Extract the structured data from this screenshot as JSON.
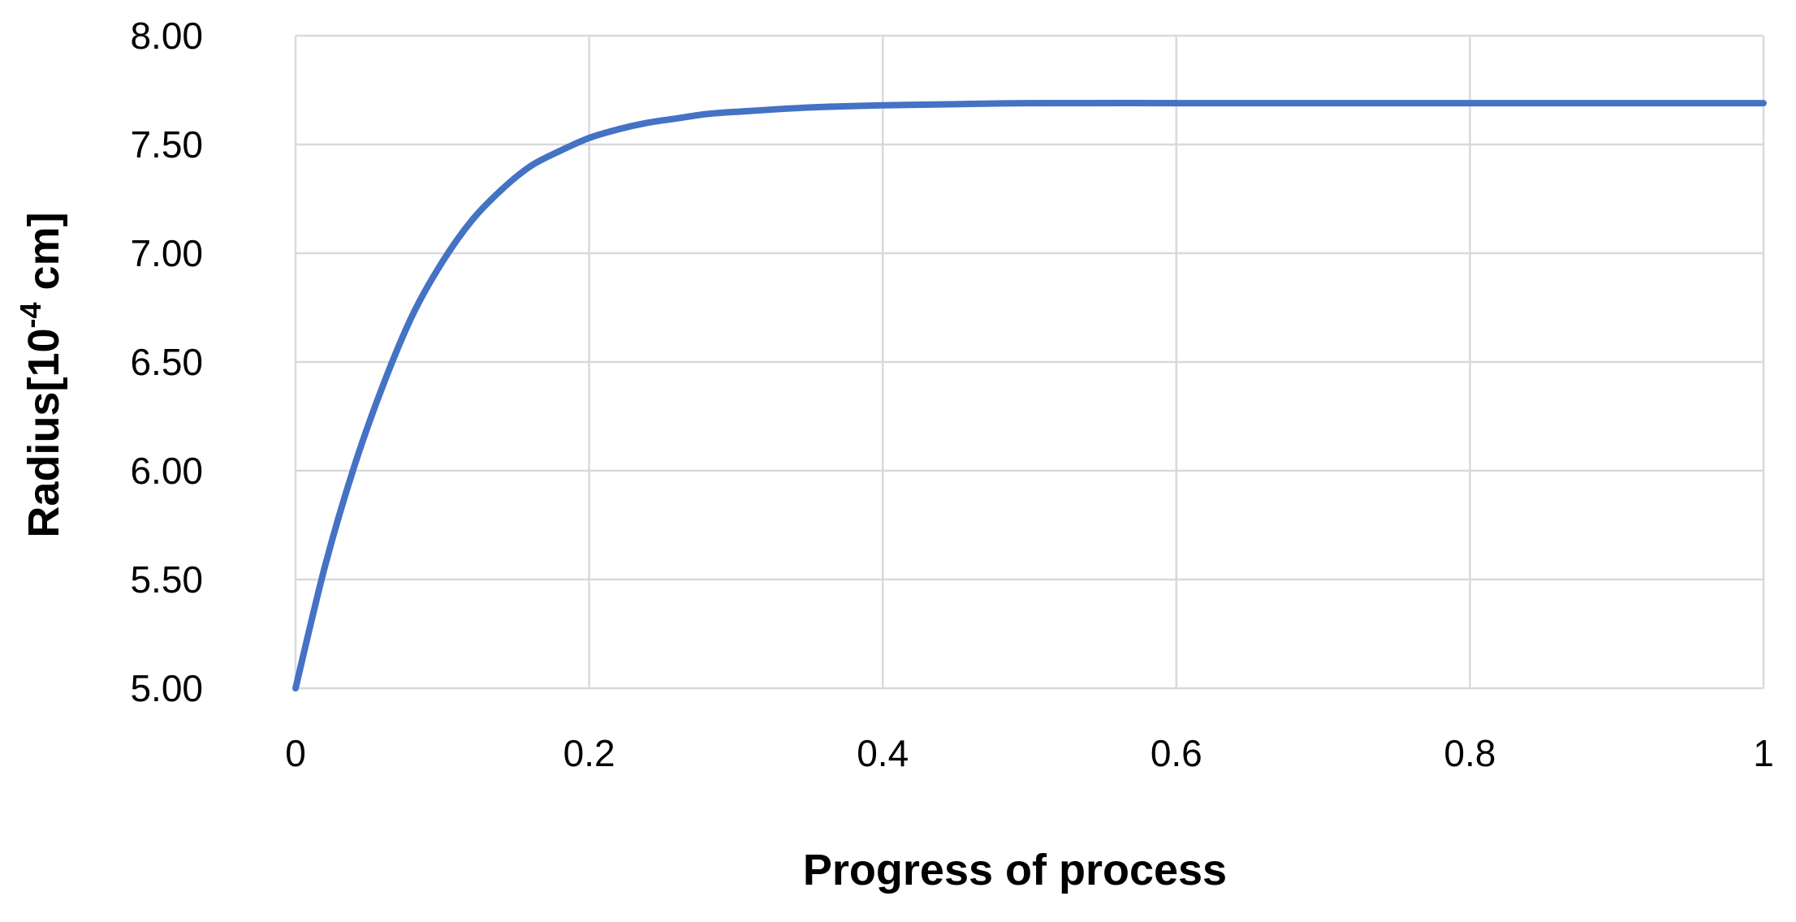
{
  "chart_data": {
    "type": "line",
    "title": "",
    "xlabel": "Progress of process",
    "ylabel": "Radius[10",
    "ylabel_superscript": "-4",
    "ylabel_suffix": " cm]",
    "xlim": [
      0,
      1
    ],
    "ylim": [
      5.0,
      8.0
    ],
    "x_ticks": [
      "0",
      "0.2",
      "0.4",
      "0.6",
      "0.8",
      "1"
    ],
    "y_ticks": [
      "5.00",
      "5.50",
      "6.00",
      "6.50",
      "7.00",
      "7.50",
      "8.00"
    ],
    "grid": true,
    "legend": "none",
    "series": [
      {
        "color": "#4472C4",
        "x": [
          0,
          0.02,
          0.04,
          0.06,
          0.08,
          0.1,
          0.12,
          0.14,
          0.16,
          0.18,
          0.2,
          0.22,
          0.24,
          0.26,
          0.28,
          0.3,
          0.35,
          0.4,
          0.45,
          0.5,
          0.6,
          0.7,
          0.8,
          0.9,
          1.0
        ],
        "y": [
          5.0,
          5.56,
          6.02,
          6.4,
          6.72,
          6.96,
          7.15,
          7.29,
          7.4,
          7.47,
          7.53,
          7.57,
          7.6,
          7.62,
          7.64,
          7.65,
          7.67,
          7.68,
          7.685,
          7.69,
          7.69,
          7.69,
          7.69,
          7.69,
          7.69
        ]
      }
    ]
  }
}
